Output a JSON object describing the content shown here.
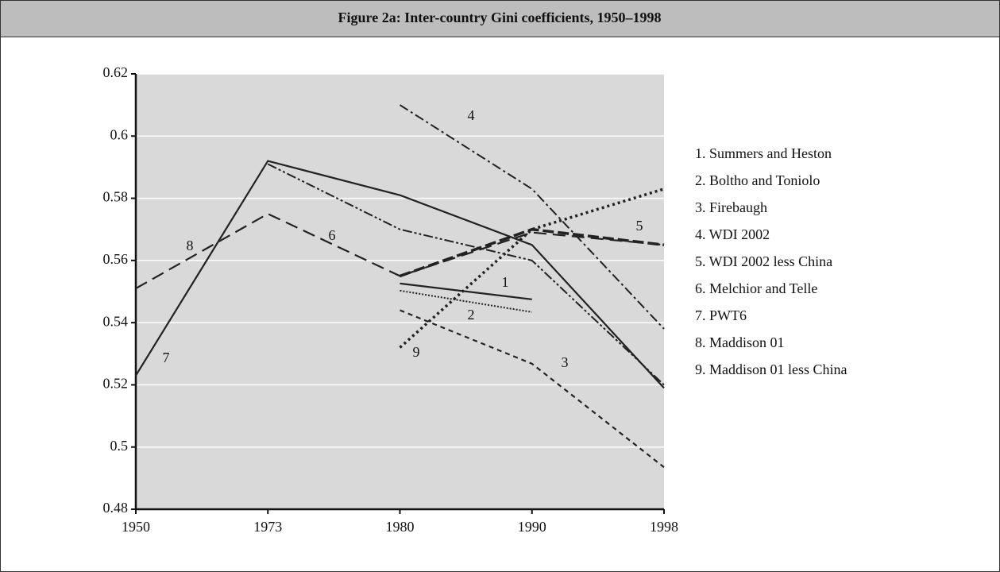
{
  "chart_data": {
    "type": "line",
    "title": "Figure 2a: Inter-country Gini coefficients, 1950–1998",
    "categories": [
      "1950",
      "1973",
      "1980",
      "1990",
      "1998"
    ],
    "ylim": [
      0.48,
      0.62
    ],
    "yticks": [
      0.48,
      0.5,
      0.52,
      0.54,
      0.56,
      0.58,
      0.6,
      0.62
    ],
    "grid": true,
    "legend": "right",
    "series": [
      {
        "name": "1. Summers and Heston",
        "label": "1",
        "color": "#222222",
        "style": "solid",
        "values": [
          null,
          null,
          0.5526,
          0.5475,
          null
        ]
      },
      {
        "name": "2. Boltho and Toniolo",
        "label": "2",
        "color": "#222222",
        "style": "dotted",
        "values": [
          null,
          null,
          0.5503,
          0.5434,
          null
        ]
      },
      {
        "name": "3. Firebaugh",
        "label": "3",
        "color": "#222222",
        "style": "dashed",
        "values": [
          null,
          null,
          0.544,
          0.5268,
          0.4935
        ]
      },
      {
        "name": "4. WDI 2002",
        "label": "4",
        "color": "#222222",
        "style": "dashdot",
        "values": [
          null,
          null,
          0.61,
          0.583,
          0.538
        ]
      },
      {
        "name": "5. WDI 2002 less China",
        "label": "5",
        "color": "#222222",
        "style": "thickdash",
        "values": [
          null,
          null,
          0.555,
          0.57,
          0.565
        ]
      },
      {
        "name": "6. Melchior and Telle",
        "label": "6",
        "color": "#222222",
        "style": "dashdotdot",
        "values": [
          null,
          0.591,
          0.57,
          0.56,
          0.52
        ]
      },
      {
        "name": "7. PWT6",
        "label": "7",
        "color": "#222222",
        "style": "solid",
        "values": [
          0.523,
          0.592,
          0.581,
          0.565,
          0.519
        ]
      },
      {
        "name": "8. Maddison 01",
        "label": "8",
        "color": "#222222",
        "style": "longdash",
        "values": [
          0.551,
          0.575,
          0.555,
          0.569,
          0.565
        ]
      },
      {
        "name": "9. Maddison 01 less China",
        "label": "9",
        "color": "#222222",
        "style": "bigdot",
        "values": [
          null,
          null,
          0.532,
          0.57,
          0.583
        ]
      }
    ]
  }
}
